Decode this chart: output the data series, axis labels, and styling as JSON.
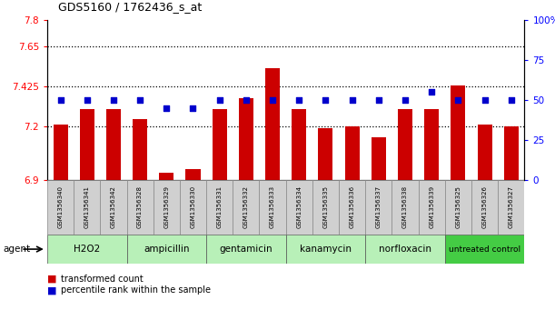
{
  "title": "GDS5160 / 1762436_s_at",
  "samples": [
    "GSM1356340",
    "GSM1356341",
    "GSM1356342",
    "GSM1356328",
    "GSM1356329",
    "GSM1356330",
    "GSM1356331",
    "GSM1356332",
    "GSM1356333",
    "GSM1356334",
    "GSM1356335",
    "GSM1356336",
    "GSM1356337",
    "GSM1356338",
    "GSM1356339",
    "GSM1356325",
    "GSM1356326",
    "GSM1356327"
  ],
  "bar_values": [
    7.21,
    7.3,
    7.3,
    7.24,
    6.94,
    6.96,
    7.3,
    7.36,
    7.53,
    7.3,
    7.19,
    7.2,
    7.14,
    7.3,
    7.3,
    7.43,
    7.21,
    7.2
  ],
  "percentile_values": [
    50,
    50,
    50,
    50,
    45,
    45,
    50,
    50,
    50,
    50,
    50,
    50,
    50,
    50,
    55,
    50,
    50,
    50
  ],
  "groups": [
    {
      "name": "H2O2",
      "start": 0,
      "end": 3,
      "color": "#b8f0b8"
    },
    {
      "name": "ampicillin",
      "start": 3,
      "end": 6,
      "color": "#b8f0b8"
    },
    {
      "name": "gentamicin",
      "start": 6,
      "end": 9,
      "color": "#b8f0b8"
    },
    {
      "name": "kanamycin",
      "start": 9,
      "end": 12,
      "color": "#b8f0b8"
    },
    {
      "name": "norfloxacin",
      "start": 12,
      "end": 15,
      "color": "#b8f0b8"
    },
    {
      "name": "untreated control",
      "start": 15,
      "end": 18,
      "color": "#44cc44"
    }
  ],
  "ylim_left": [
    6.9,
    7.8
  ],
  "ylim_right": [
    0,
    100
  ],
  "yticks_left": [
    6.9,
    7.2,
    7.425,
    7.65,
    7.8
  ],
  "yticks_right": [
    0,
    25,
    50,
    75,
    100
  ],
  "ytick_labels_left": [
    "6.9",
    "7.2",
    "7.425",
    "7.65",
    "7.8"
  ],
  "ytick_labels_right": [
    "0",
    "25",
    "50",
    "75",
    "100%"
  ],
  "bar_color": "#cc0000",
  "dot_color": "#0000cc",
  "hline_values": [
    7.2,
    7.425,
    7.65
  ],
  "agent_label": "agent",
  "legend_bar_label": "transformed count",
  "legend_dot_label": "percentile rank within the sample"
}
